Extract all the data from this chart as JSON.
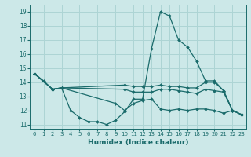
{
  "xlabel": "Humidex (Indice chaleur)",
  "bg_color": "#cce8e8",
  "grid_color": "#add4d4",
  "line_color": "#1a6b6b",
  "xlim": [
    -0.5,
    23.5
  ],
  "ylim": [
    10.7,
    19.5
  ],
  "yticks": [
    11,
    12,
    13,
    14,
    15,
    16,
    17,
    18,
    19
  ],
  "xticks": [
    0,
    1,
    2,
    3,
    4,
    5,
    6,
    7,
    8,
    9,
    10,
    11,
    12,
    13,
    14,
    15,
    16,
    17,
    18,
    19,
    20,
    21,
    22,
    23
  ],
  "lines": [
    {
      "x": [
        0,
        1,
        2,
        3,
        4,
        5,
        6,
        7,
        8,
        9,
        10,
        11,
        12,
        13,
        14,
        15,
        16,
        17,
        18,
        19,
        20,
        21,
        22,
        23
      ],
      "y": [
        14.6,
        14.1,
        13.5,
        13.6,
        12.0,
        11.5,
        11.2,
        11.2,
        11.0,
        11.3,
        11.9,
        12.8,
        12.8,
        16.4,
        19.0,
        18.7,
        17.0,
        16.5,
        15.5,
        14.1,
        14.1,
        13.4,
        12.0,
        11.7
      ]
    },
    {
      "x": [
        0,
        2,
        3,
        10,
        11,
        12,
        13,
        14,
        15,
        16,
        17,
        18,
        19,
        20,
        21,
        22,
        23
      ],
      "y": [
        14.6,
        13.5,
        13.6,
        13.8,
        13.7,
        13.7,
        13.7,
        13.8,
        13.7,
        13.7,
        13.6,
        13.6,
        14.0,
        14.0,
        13.4,
        12.0,
        11.7
      ]
    },
    {
      "x": [
        0,
        2,
        3,
        10,
        11,
        12,
        13,
        14,
        15,
        16,
        17,
        18,
        19,
        20,
        21,
        22,
        23
      ],
      "y": [
        14.6,
        13.5,
        13.6,
        13.5,
        13.3,
        13.3,
        13.3,
        13.5,
        13.5,
        13.4,
        13.3,
        13.2,
        13.5,
        13.4,
        13.3,
        12.0,
        11.7
      ]
    },
    {
      "x": [
        0,
        2,
        3,
        9,
        10,
        11,
        12,
        13,
        14,
        15,
        16,
        17,
        18,
        19,
        20,
        21,
        22,
        23
      ],
      "y": [
        14.6,
        13.5,
        13.6,
        12.5,
        12.0,
        12.5,
        12.7,
        12.8,
        12.1,
        12.0,
        12.1,
        12.0,
        12.1,
        12.1,
        12.0,
        11.8,
        12.0,
        11.7
      ]
    }
  ]
}
